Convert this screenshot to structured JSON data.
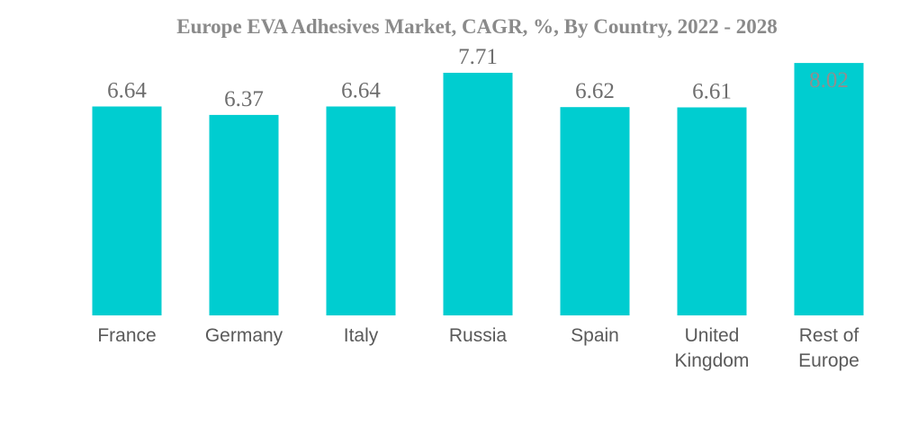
{
  "chart_data": {
    "type": "bar",
    "title": "Europe EVA Adhesives Market, CAGR, %, By Country, 2022 - 2028",
    "xlabel": "",
    "ylabel": "",
    "ylim": [
      0,
      9.08
    ],
    "grid": false,
    "categories": [
      [
        "France"
      ],
      [
        "Germany"
      ],
      [
        "Italy"
      ],
      [
        "Russia"
      ],
      [
        "Spain"
      ],
      [
        "United",
        "Kingdom"
      ],
      [
        "Rest of",
        "Europe"
      ]
    ],
    "values": [
      6.64,
      6.37,
      6.64,
      7.71,
      6.62,
      6.61,
      8.02
    ],
    "colors": {
      "bar": "#00CDD0"
    }
  }
}
